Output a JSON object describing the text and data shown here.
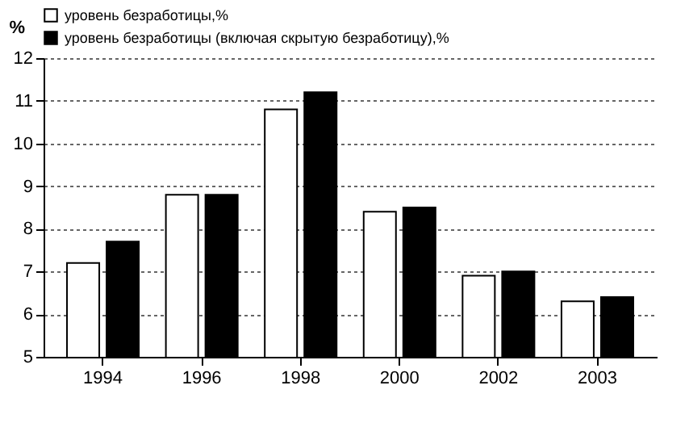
{
  "chart_data": {
    "type": "bar",
    "ylabel": "%",
    "categories": [
      "1994",
      "1996",
      "1998",
      "2000",
      "2002",
      "2003"
    ],
    "series": [
      {
        "name": "уровень безработицы,%",
        "color": "#ffffff",
        "values": [
          7.2,
          8.8,
          10.8,
          8.4,
          6.9,
          6.3
        ]
      },
      {
        "name": "уровень безработицы (включая скрытую безработицу),%",
        "color": "#000000",
        "values": [
          7.7,
          8.8,
          11.2,
          8.5,
          7.0,
          6.4
        ]
      }
    ],
    "ylim": [
      5,
      12
    ],
    "yticks": [
      5,
      6,
      7,
      8,
      9,
      10,
      11,
      12
    ],
    "grid": "y",
    "legend": "top"
  }
}
